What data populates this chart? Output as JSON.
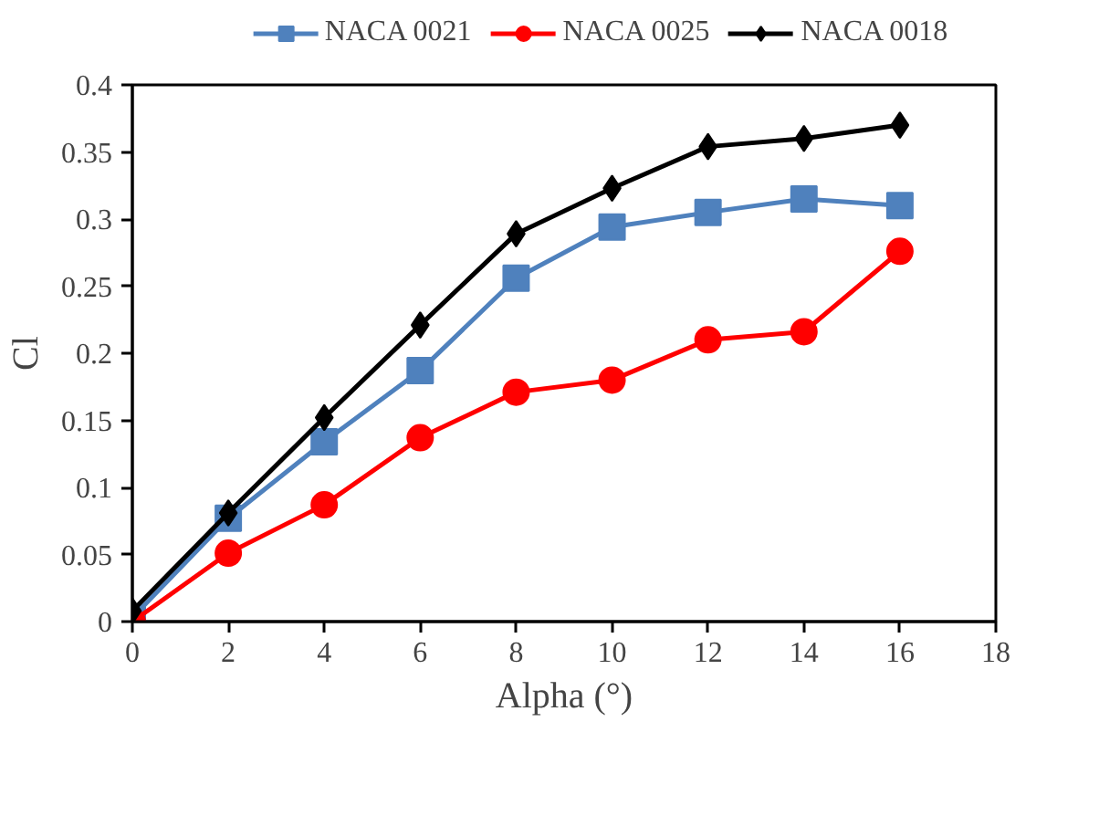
{
  "chart_data": {
    "type": "line",
    "xlabel": "Alpha (°)",
    "ylabel": "Cl",
    "x": [
      0,
      2,
      4,
      6,
      8,
      10,
      12,
      14,
      16
    ],
    "series": [
      {
        "name": "NACA 0021",
        "color": "#4f81bd",
        "marker": "square",
        "values": [
          0.003,
          0.077,
          0.134,
          0.187,
          0.256,
          0.294,
          0.305,
          0.315,
          0.31
        ]
      },
      {
        "name": "NACA 0025",
        "color": "#ff0000",
        "marker": "circle",
        "values": [
          0.0,
          0.051,
          0.087,
          0.137,
          0.171,
          0.18,
          0.21,
          0.216,
          0.276
        ]
      },
      {
        "name": "NACA 0018",
        "color": "#000000",
        "marker": "diamond",
        "values": [
          0.008,
          0.081,
          0.152,
          0.221,
          0.289,
          0.323,
          0.354,
          0.36,
          0.37
        ]
      }
    ],
    "xlim": [
      0,
      18
    ],
    "xticks": [
      0,
      2,
      4,
      6,
      8,
      10,
      12,
      14,
      16,
      18
    ],
    "ylim": [
      0,
      0.4
    ],
    "yticks": [
      0,
      0.05,
      0.1,
      0.15,
      0.2,
      0.25,
      0.3,
      0.35,
      0.4
    ],
    "grid": false,
    "legend": "top",
    "line_style": "solid"
  }
}
